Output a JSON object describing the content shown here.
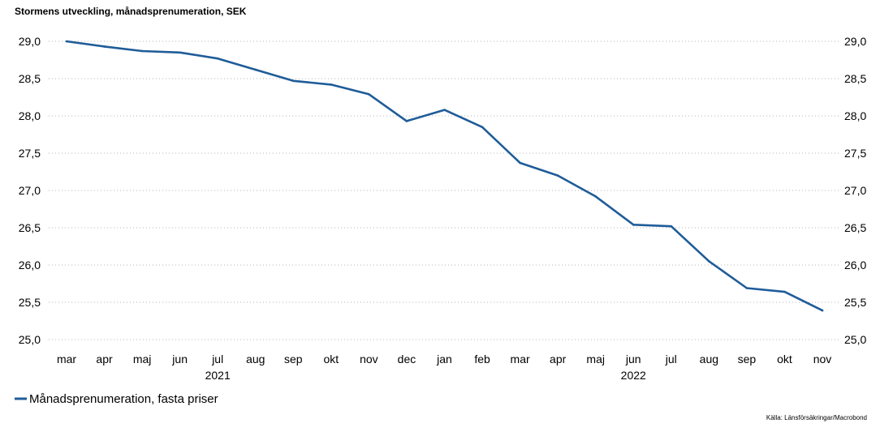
{
  "chart_data": {
    "type": "line",
    "title": "Stormens utveckling, månadsprenumeration, SEK",
    "xlabel": "",
    "ylabel": "",
    "categories": [
      "mar",
      "apr",
      "maj",
      "jun",
      "jul",
      "aug",
      "sep",
      "okt",
      "nov",
      "dec",
      "jan",
      "feb",
      "mar",
      "apr",
      "maj",
      "jun",
      "jul",
      "aug",
      "sep",
      "okt",
      "nov"
    ],
    "year_labels": [
      {
        "label": "2021",
        "category_index": 4
      },
      {
        "label": "2022",
        "category_index": 15
      }
    ],
    "series": [
      {
        "name": "Månadsprenumeration, fasta priser",
        "color": "#1f5c99",
        "values": [
          29.0,
          28.93,
          28.87,
          28.85,
          28.77,
          28.62,
          28.47,
          28.42,
          28.29,
          27.93,
          28.08,
          27.85,
          27.37,
          27.2,
          26.92,
          26.54,
          26.52,
          26.05,
          25.69,
          25.64,
          25.39
        ]
      }
    ],
    "ylim": [
      25.0,
      29.0
    ],
    "yticks": [
      "25,0",
      "25,5",
      "26,0",
      "26,5",
      "27,0",
      "27,5",
      "28,0",
      "28,5",
      "29,0"
    ],
    "ytick_values": [
      25.0,
      25.5,
      26.0,
      26.5,
      27.0,
      27.5,
      28.0,
      28.5,
      29.0
    ],
    "grid": true,
    "legend_position": "bottom-left",
    "source": "Källa: Länsförsäkringar/Macrobond"
  }
}
